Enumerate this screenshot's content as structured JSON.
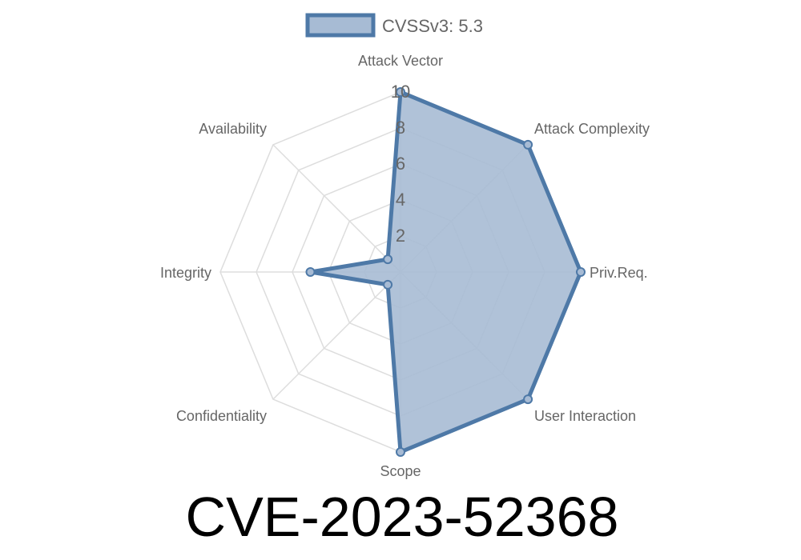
{
  "chart_data": {
    "type": "radar",
    "legend": {
      "label": "CVSSv3: 5.3",
      "placement": "top"
    },
    "axes": [
      "Attack Vector",
      "Attack Complexity",
      "Priv.Req.",
      "User Interaction",
      "Scope",
      "Confidentiality",
      "Integrity",
      "Availability"
    ],
    "series": [
      {
        "name": "CVSSv3: 5.3",
        "values": [
          10,
          10,
          10,
          10,
          10,
          1,
          5,
          1
        ]
      }
    ],
    "rlim": [
      0,
      10
    ],
    "ticks": [
      "2",
      "4",
      "6",
      "8",
      "10"
    ],
    "tick_values": [
      2,
      4,
      6,
      8,
      10
    ],
    "grid": true,
    "colors": {
      "line": "#4e79a7",
      "fill": "#a7bbd4",
      "grid": "#dddddd",
      "label": "#666666"
    }
  },
  "title": "CVE-2023-52368"
}
